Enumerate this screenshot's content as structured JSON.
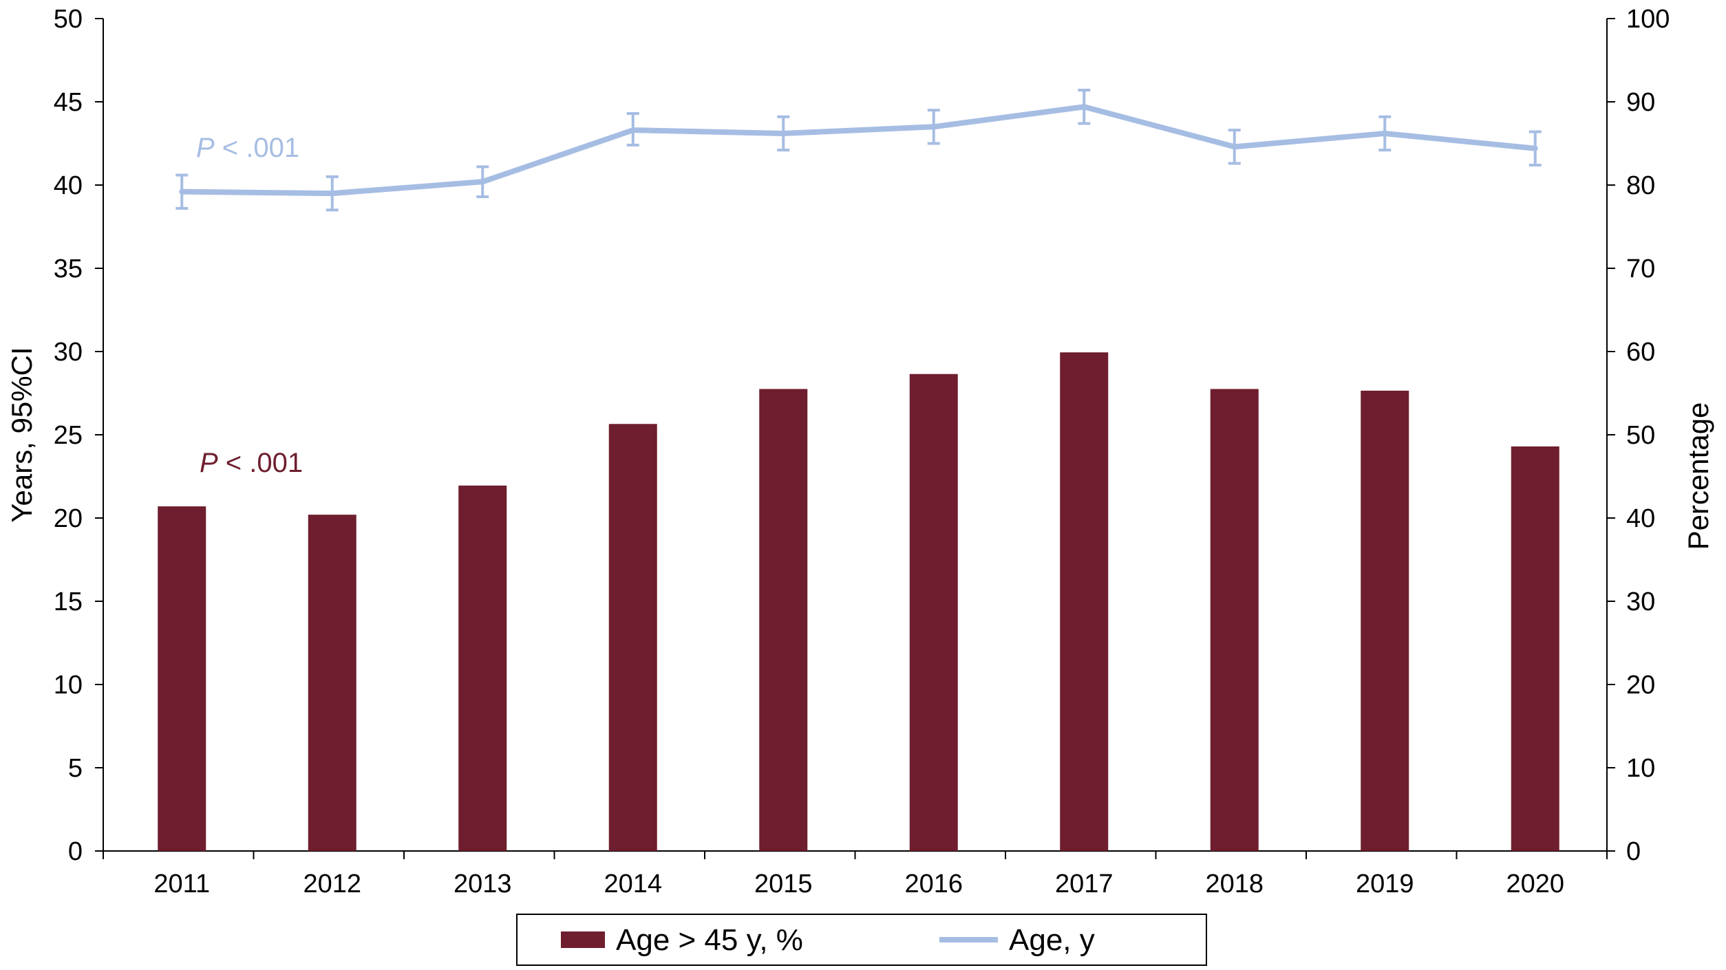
{
  "chart_data": {
    "type": "bar",
    "categories": [
      "2011",
      "2012",
      "2013",
      "2014",
      "2015",
      "2016",
      "2017",
      "2018",
      "2019",
      "2020"
    ],
    "series": [
      {
        "name": "Age > 45 y, %",
        "kind": "bar",
        "axis": "right",
        "color": "#6e1e2e",
        "values": [
          41.4,
          40.4,
          43.9,
          51.3,
          55.5,
          57.3,
          59.9,
          55.5,
          55.3,
          48.6
        ]
      },
      {
        "name": "Age, y",
        "kind": "line",
        "axis": "left",
        "color": "#a6bde3",
        "values": [
          39.6,
          39.5,
          40.2,
          43.3,
          43.1,
          43.5,
          44.7,
          42.3,
          43.1,
          42.2
        ],
        "ci_lower": [
          38.6,
          38.5,
          39.3,
          42.4,
          42.1,
          42.5,
          43.7,
          41.3,
          42.1,
          41.2
        ],
        "ci_upper": [
          40.6,
          40.5,
          41.1,
          44.3,
          44.1,
          44.5,
          45.7,
          43.3,
          44.1,
          43.2
        ]
      }
    ],
    "y_left": {
      "label": "Years, 95%CI",
      "lim": [
        0,
        50
      ],
      "ticks": [
        "0",
        "5",
        "10",
        "15",
        "20",
        "25",
        "30",
        "35",
        "40",
        "45",
        "50"
      ]
    },
    "y_right": {
      "label": "Percentage",
      "lim": [
        0,
        100
      ],
      "ticks": [
        "0",
        "10",
        "20",
        "30",
        "40",
        "50",
        "60",
        "70",
        "80",
        "90",
        "100"
      ]
    },
    "annotations": [
      {
        "series": "Age, y",
        "text_italic": "P",
        "text": " < .001",
        "color": "#a6bde3"
      },
      {
        "series": "Age > 45 y, %",
        "text_italic": "P",
        "text": " < .001",
        "color": "#6e1e2e"
      }
    ],
    "legend_position": "bottom",
    "grid": false
  }
}
